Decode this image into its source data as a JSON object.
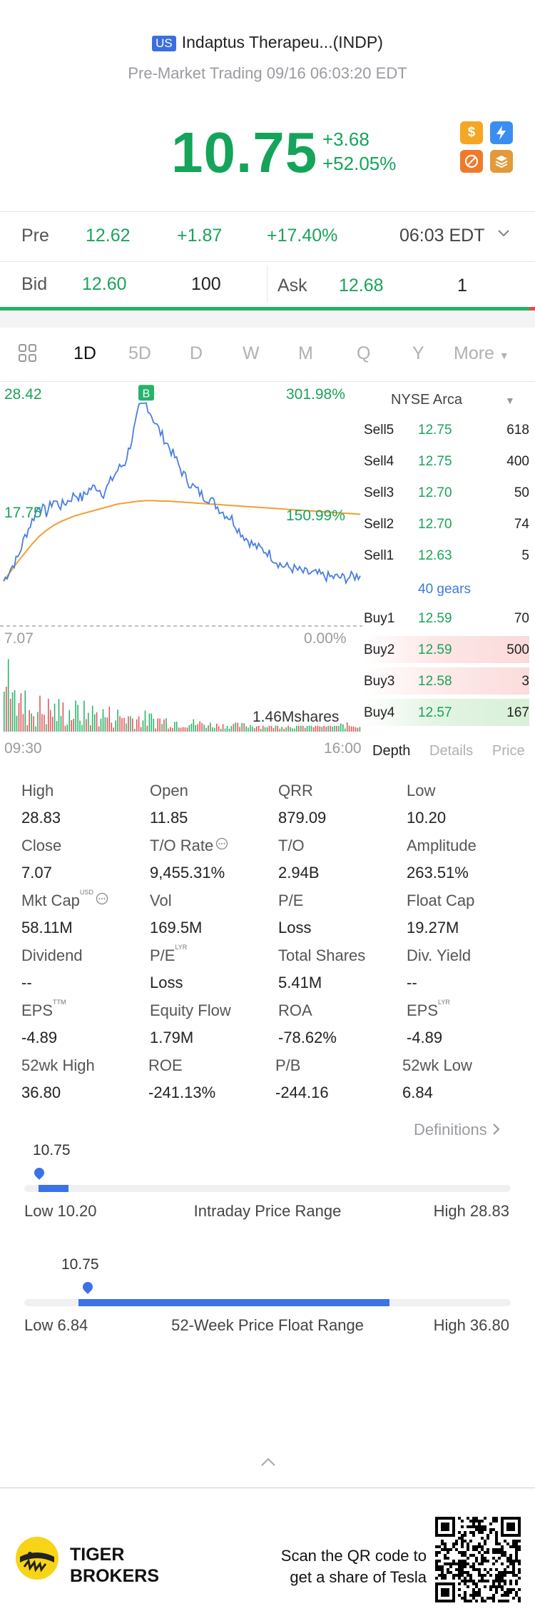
{
  "header": {
    "market_badge": "US",
    "title": "Indaptus Therapeu...(INDP)",
    "subtitle": "Pre-Market Trading 09/16 06:03:20 EDT"
  },
  "quote": {
    "price": "10.75",
    "change": "+3.68",
    "change_pct": "+52.05%",
    "badges": [
      {
        "icon": "dollar-icon",
        "color": "#f5a623"
      },
      {
        "icon": "lightning-icon",
        "color": "#3a8ef0"
      },
      {
        "icon": "no-margin-icon",
        "color": "#f07a2a"
      },
      {
        "icon": "stack-icon",
        "color": "#e39a3a"
      }
    ]
  },
  "pre_row": {
    "label": "Pre",
    "price": "12.62",
    "change": "+1.87",
    "change_pct": "+17.40%",
    "time": "06:03 EDT"
  },
  "bid_ask": {
    "bid_label": "Bid",
    "bid_price": "12.60",
    "bid_size": "100",
    "ask_label": "Ask",
    "ask_price": "12.68",
    "ask_size": "1"
  },
  "tabs": [
    "1D",
    "5D",
    "D",
    "W",
    "M",
    "Q",
    "Y",
    "More"
  ],
  "active_tab": "1D",
  "chart_data": {
    "type": "line",
    "y_top_label": "28.42",
    "y_mid_label": "17.75",
    "y_bottom_label": "7.07",
    "pct_top_label": "301.98%",
    "pct_mid_label": "150.99%",
    "pct_bottom_label": "0.00%",
    "x_start": "09:30",
    "x_end": "16:00",
    "ylim": [
      7.07,
      28.42
    ],
    "marker_label": "B",
    "volume_label": "1.46Mshares",
    "price_series": [
      10.2,
      11.5,
      12.6,
      14.8,
      16.4,
      18.0,
      17.2,
      18.5,
      17.9,
      18.4,
      19.1,
      18.7,
      19.6,
      19.9,
      19.2,
      20.4,
      21.6,
      22.3,
      24.8,
      27.9,
      28.4,
      26.8,
      25.4,
      24.2,
      22.9,
      21.4,
      20.3,
      19.6,
      18.9,
      18.6,
      17.8,
      17.1,
      16.6,
      15.4,
      14.6,
      13.9,
      13.5,
      13.2,
      12.4,
      11.8,
      11.6,
      11.4,
      11.1,
      11.0,
      10.9,
      10.7,
      10.6,
      10.6,
      10.5,
      10.7,
      10.75
    ],
    "avg_series": [
      10.2,
      11.2,
      12.2,
      13.1,
      14.0,
      14.8,
      15.4,
      15.9,
      16.3,
      16.6,
      16.9,
      17.1,
      17.3,
      17.5,
      17.7,
      17.9,
      18.1,
      18.2,
      18.3,
      18.4,
      18.45,
      18.45,
      18.4,
      18.4,
      18.35,
      18.3,
      18.25,
      18.2,
      18.15,
      18.1,
      18.05,
      18.0,
      17.95,
      17.9,
      17.85,
      17.8,
      17.75,
      17.7,
      17.65,
      17.6,
      17.55,
      17.5,
      17.45,
      17.4,
      17.35,
      17.3,
      17.25,
      17.2,
      17.15,
      17.1,
      17.05
    ]
  },
  "order_book": {
    "exchange": "NYSE Arca",
    "sells": [
      {
        "label": "Sell5",
        "price": "12.75",
        "size": "618"
      },
      {
        "label": "Sell4",
        "price": "12.75",
        "size": "400"
      },
      {
        "label": "Sell3",
        "price": "12.70",
        "size": "50"
      },
      {
        "label": "Sell2",
        "price": "12.70",
        "size": "74"
      },
      {
        "label": "Sell1",
        "price": "12.63",
        "size": "5"
      }
    ],
    "gears": "40 gears",
    "buys": [
      {
        "label": "Buy1",
        "price": "12.59",
        "size": "70"
      },
      {
        "label": "Buy2",
        "price": "12.59",
        "size": "500"
      },
      {
        "label": "Buy3",
        "price": "12.58",
        "size": "3"
      },
      {
        "label": "Buy4",
        "price": "12.57",
        "size": "167"
      }
    ],
    "tabs": [
      "Depth",
      "Details",
      "Price"
    ]
  },
  "stats": [
    {
      "label": "High",
      "value": "28.83"
    },
    {
      "label": "Open",
      "value": "11.85"
    },
    {
      "label": "QRR",
      "value": "879.09"
    },
    {
      "label": "Low",
      "value": "10.20"
    },
    {
      "label": "Close",
      "value": "7.07"
    },
    {
      "label": "T/O Rate",
      "value": "9,455.31%"
    },
    {
      "label": "T/O",
      "value": "2.94B"
    },
    {
      "label": "Amplitude",
      "value": "263.51%"
    },
    {
      "label": "Mkt Cap",
      "value": "58.11M",
      "sup": "USD"
    },
    {
      "label": "Vol",
      "value": "169.5M"
    },
    {
      "label": "P/E",
      "value": "Loss"
    },
    {
      "label": "Float Cap",
      "value": "19.27M"
    },
    {
      "label": "Dividend",
      "value": "--"
    },
    {
      "label": "P/E",
      "value": "Loss",
      "sup": "LYR"
    },
    {
      "label": "Total Shares",
      "value": "5.41M"
    },
    {
      "label": "Div. Yield",
      "value": "--"
    },
    {
      "label": "EPS",
      "value": "-4.89",
      "sup": "TTM"
    },
    {
      "label": "Equity Flow",
      "value": "1.79M"
    },
    {
      "label": "ROA",
      "value": "-78.62%"
    },
    {
      "label": "EPS",
      "value": "-4.89",
      "sup": "LYR"
    },
    {
      "label": "52wk High",
      "value": "36.80"
    },
    {
      "label": "ROE",
      "value": "-241.13%"
    },
    {
      "label": "P/B",
      "value": "-244.16"
    },
    {
      "label": "52wk Low",
      "value": "6.84"
    }
  ],
  "definitions_link": "Definitions",
  "intraday_range": {
    "current": "10.75",
    "low": "Low 10.20",
    "title": "Intraday Price Range",
    "high": "High 28.83",
    "fill_fraction": 0.03
  },
  "week52_range": {
    "current": "10.75",
    "low": "Low 6.84",
    "title": "52-Week Price Float Range",
    "high": "High 36.80",
    "fill_fraction": 0.13
  },
  "footer": {
    "brand_line1": "TIGER",
    "brand_line2": "BROKERS",
    "cta_line1": "Scan the QR code to",
    "cta_line2": "get a share of Tesla"
  }
}
